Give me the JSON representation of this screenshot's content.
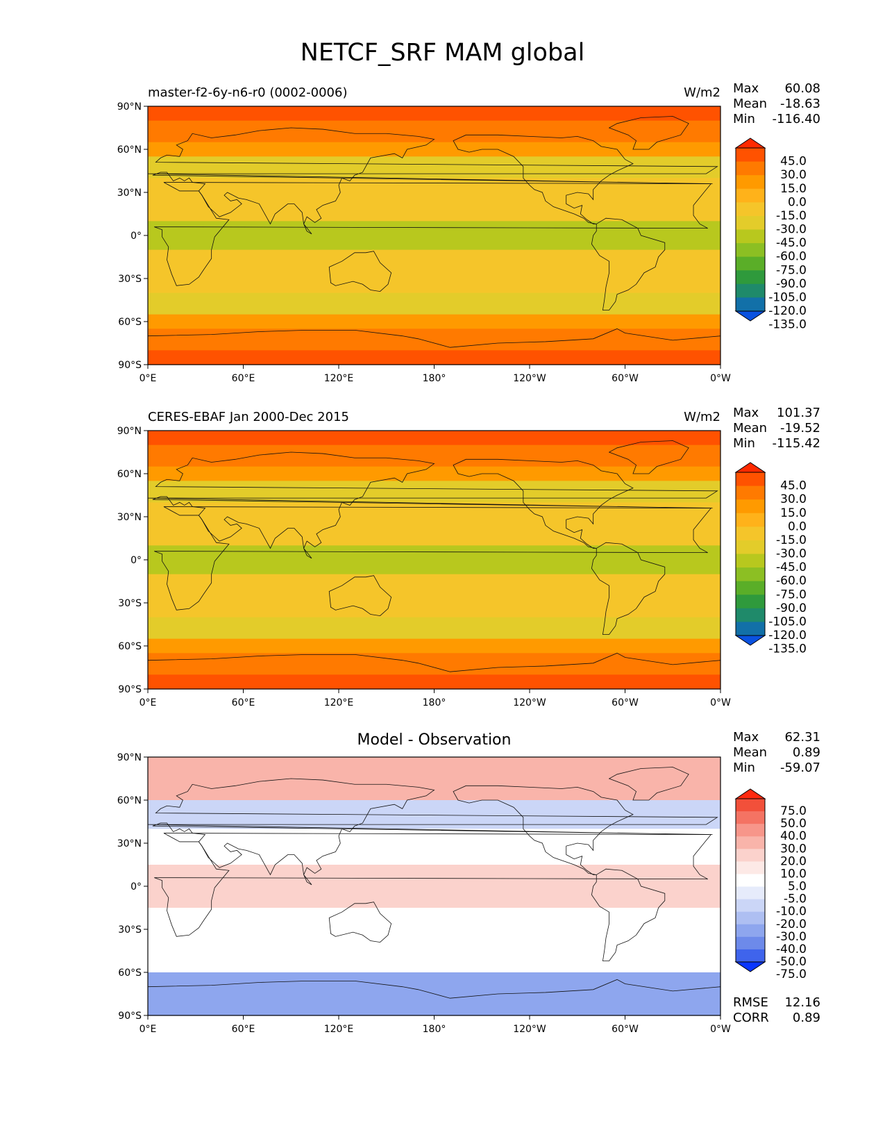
{
  "figure": {
    "title": "NETCF_SRF MAM global"
  },
  "axes": {
    "lat_ticks": [
      "90°N",
      "60°N",
      "30°N",
      "0°",
      "30°S",
      "60°S",
      "90°S"
    ],
    "lon_ticks": [
      "0°E",
      "60°E",
      "120°E",
      "180°",
      "120°W",
      "60°W",
      "0°W"
    ]
  },
  "panels": [
    {
      "left_title": "master-f2-6y-n6-r0 (0002-0006)",
      "center_title": "",
      "units": "W/m2",
      "stats": [
        {
          "label": "Max",
          "value": "60.08"
        },
        {
          "label": "Mean",
          "value": "-18.63"
        },
        {
          "label": "Min",
          "value": "-116.40"
        }
      ],
      "colorbar": {
        "levels": [
          "45.0",
          "30.0",
          "15.0",
          "0.0",
          "-15.0",
          "-30.0",
          "-45.0",
          "-60.0",
          "-75.0",
          "-90.0",
          "-105.0",
          "-120.0",
          "-135.0"
        ],
        "colors": [
          "#ff2a00",
          "#ff5200",
          "#ff7a00",
          "#ff9a00",
          "#ffb21a",
          "#f5c52a",
          "#e3cc2a",
          "#b8c81e",
          "#8cbf23",
          "#5aae28",
          "#2f9a3c",
          "#1f8a6a",
          "#1270a8",
          "#0a52e0"
        ]
      },
      "extra_stats": []
    },
    {
      "left_title": "CERES-EBAF Jan 2000-Dec 2015",
      "center_title": "",
      "units": "W/m2",
      "stats": [
        {
          "label": "Max",
          "value": "101.37"
        },
        {
          "label": "Mean",
          "value": "-19.52"
        },
        {
          "label": "Min",
          "value": "-115.42"
        }
      ],
      "colorbar": {
        "levels": [
          "45.0",
          "30.0",
          "15.0",
          "0.0",
          "-15.0",
          "-30.0",
          "-45.0",
          "-60.0",
          "-75.0",
          "-90.0",
          "-105.0",
          "-120.0",
          "-135.0"
        ],
        "colors": [
          "#ff2a00",
          "#ff5200",
          "#ff7a00",
          "#ff9a00",
          "#ffb21a",
          "#f5c52a",
          "#e3cc2a",
          "#b8c81e",
          "#8cbf23",
          "#5aae28",
          "#2f9a3c",
          "#1f8a6a",
          "#1270a8",
          "#0a52e0"
        ]
      },
      "extra_stats": []
    },
    {
      "left_title": "",
      "center_title": "Model - Observation",
      "units": "",
      "stats": [
        {
          "label": "Max",
          "value": "62.31"
        },
        {
          "label": "Mean",
          "value": "0.89"
        },
        {
          "label": "Min",
          "value": "-59.07"
        }
      ],
      "colorbar": {
        "levels": [
          "75.0",
          "50.0",
          "40.0",
          "30.0",
          "20.0",
          "10.0",
          "5.0",
          "-5.0",
          "-10.0",
          "-20.0",
          "-30.0",
          "-40.0",
          "-50.0",
          "-75.0"
        ],
        "colors": [
          "#ff2a10",
          "#f2503a",
          "#f47363",
          "#f7968a",
          "#f9b4aa",
          "#fbd2cc",
          "#fde9e6",
          "#ffffff",
          "#e6ebfb",
          "#cbd6f7",
          "#aebff2",
          "#8ea6ee",
          "#6d8aea",
          "#3f64ec",
          "#0a36ff"
        ]
      },
      "extra_stats": [
        {
          "label": "RMSE",
          "value": "12.16"
        },
        {
          "label": "CORR",
          "value": "0.89"
        }
      ]
    }
  ]
}
